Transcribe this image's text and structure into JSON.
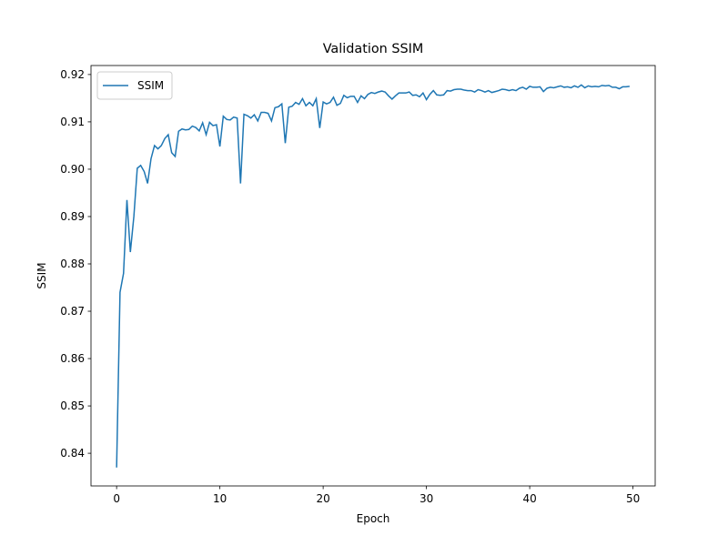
{
  "chart_data": {
    "type": "line",
    "title": "Validation SSIM",
    "x_label": "Epoch",
    "y_label": "SSIM",
    "x": [
      0,
      0.33,
      0.67,
      1,
      1.33,
      1.67,
      2,
      2.33,
      2.67,
      3,
      3.33,
      3.67,
      4,
      4.33,
      4.67,
      5,
      5.33,
      5.67,
      6,
      6.33,
      6.67,
      7,
      7.33,
      7.67,
      8,
      8.33,
      8.67,
      9,
      9.33,
      9.67,
      10,
      10.33,
      10.67,
      11,
      11.33,
      11.67,
      12,
      12.33,
      12.67,
      13,
      13.33,
      13.67,
      14,
      14.33,
      14.67,
      15,
      15.33,
      15.67,
      16,
      16.33,
      16.67,
      17,
      17.33,
      17.67,
      18,
      18.33,
      18.67,
      19,
      19.33,
      19.67,
      20,
      20.33,
      20.67,
      21,
      21.33,
      21.67,
      22,
      22.33,
      22.67,
      23,
      23.33,
      23.67,
      24,
      24.33,
      24.67,
      25,
      25.33,
      25.67,
      26,
      26.33,
      26.67,
      27,
      27.33,
      27.67,
      28,
      28.33,
      28.67,
      29,
      29.33,
      29.67,
      30,
      30.33,
      30.67,
      31,
      31.33,
      31.67,
      32,
      32.33,
      32.67,
      33,
      33.33,
      33.67,
      34,
      34.33,
      34.67,
      35,
      35.33,
      35.67,
      36,
      36.33,
      36.67,
      37,
      37.33,
      37.67,
      38,
      38.33,
      38.67,
      39,
      39.33,
      39.67,
      40,
      40.33,
      40.67,
      41,
      41.33,
      41.67,
      42,
      42.33,
      42.67,
      43,
      43.33,
      43.67,
      44,
      44.33,
      44.67,
      45,
      45.33,
      45.67,
      46,
      46.33,
      46.67,
      47,
      47.33,
      47.67,
      48,
      48.33,
      48.67,
      49,
      49.33,
      49.67
    ],
    "series": [
      {
        "name": "SSIM",
        "color": "#1f77b4",
        "values": [
          0.837,
          0.874,
          0.878,
          0.8935,
          0.8825,
          0.89,
          0.9002,
          0.9008,
          0.8995,
          0.897,
          0.9022,
          0.905,
          0.9043,
          0.905,
          0.9065,
          0.9073,
          0.9035,
          0.9027,
          0.908,
          0.9085,
          0.9083,
          0.9084,
          0.9091,
          0.9088,
          0.9081,
          0.9098,
          0.9073,
          0.9099,
          0.9092,
          0.9094,
          0.9048,
          0.9112,
          0.9105,
          0.9104,
          0.911,
          0.9108,
          0.897,
          0.9116,
          0.9113,
          0.9108,
          0.9115,
          0.9102,
          0.912,
          0.912,
          0.9118,
          0.9102,
          0.913,
          0.9132,
          0.9138,
          0.9055,
          0.9131,
          0.9133,
          0.9141,
          0.9137,
          0.9149,
          0.9134,
          0.9141,
          0.9134,
          0.9149,
          0.9087,
          0.9142,
          0.9138,
          0.9141,
          0.9152,
          0.9135,
          0.9139,
          0.9156,
          0.9151,
          0.9154,
          0.9154,
          0.9141,
          0.9155,
          0.9149,
          0.9158,
          0.9162,
          0.916,
          0.9163,
          0.9165,
          0.9163,
          0.9155,
          0.9148,
          0.9155,
          0.9161,
          0.9161,
          0.9161,
          0.9163,
          0.9156,
          0.9157,
          0.9153,
          0.9161,
          0.9147,
          0.9158,
          0.9166,
          0.9157,
          0.9156,
          0.9157,
          0.9166,
          0.9165,
          0.9168,
          0.9169,
          0.9169,
          0.9167,
          0.9166,
          0.9166,
          0.9163,
          0.9168,
          0.9166,
          0.9163,
          0.9166,
          0.9162,
          0.9164,
          0.9166,
          0.9169,
          0.9168,
          0.9166,
          0.9168,
          0.9166,
          0.9171,
          0.9173,
          0.9169,
          0.9175,
          0.9173,
          0.9173,
          0.9174,
          0.9164,
          0.9171,
          0.9173,
          0.9172,
          0.9174,
          0.9176,
          0.9173,
          0.9174,
          0.9172,
          0.9176,
          0.9173,
          0.9178,
          0.9172,
          0.9176,
          0.9174,
          0.9175,
          0.9174,
          0.9177,
          0.9176,
          0.9177,
          0.9173,
          0.9173,
          0.917,
          0.9174,
          0.9174,
          0.9175
        ]
      }
    ],
    "xlim": [
      -2.48,
      52.15
    ],
    "ylim": [
      0.8331,
      0.9219
    ],
    "xticks": [
      0,
      10,
      20,
      30,
      40,
      50
    ],
    "yticks": [
      0.84,
      0.85,
      0.86,
      0.87,
      0.88,
      0.89,
      {
        "value": 0.9,
        "label": "0.90"
      },
      0.91,
      0.92
    ],
    "legend": "upper left"
  }
}
